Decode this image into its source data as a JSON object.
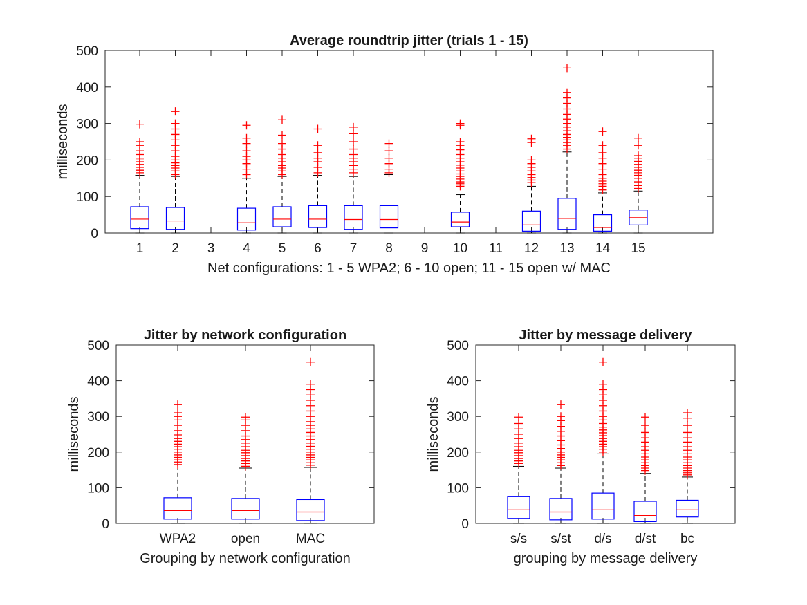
{
  "chart_data": [
    {
      "type": "box",
      "title": "Average roundtrip jitter (trials 1 - 15)",
      "xlabel": "Net configurations: 1 - 5 WPA2; 6 - 10 open; 11 - 15 open w/ MAC",
      "ylabel": "milliseconds",
      "ylim": [
        0,
        500
      ],
      "yticks": [
        0,
        100,
        200,
        300,
        400,
        500
      ],
      "categories": [
        "1",
        "2",
        "3",
        "4",
        "5",
        "6",
        "7",
        "8",
        "9",
        "10",
        "11",
        "12",
        "13",
        "14",
        "15"
      ],
      "boxes": [
        {
          "category": "1",
          "q1": 12,
          "median": 38,
          "q3": 72,
          "whisker_low": 0,
          "whisker_high": 158,
          "outliers": [
            165,
            172,
            180,
            188,
            195,
            200,
            205,
            215,
            225,
            240,
            250,
            298
          ]
        },
        {
          "category": "2",
          "q1": 10,
          "median": 33,
          "q3": 70,
          "whisker_low": 0,
          "whisker_high": 155,
          "outliers": [
            160,
            170,
            178,
            185,
            192,
            200,
            210,
            225,
            240,
            255,
            270,
            285,
            300,
            333
          ]
        },
        {
          "category": "3",
          "empty": true
        },
        {
          "category": "4",
          "q1": 8,
          "median": 28,
          "q3": 68,
          "whisker_low": 0,
          "whisker_high": 150,
          "outliers": [
            160,
            175,
            190,
            200,
            210,
            225,
            245,
            260,
            295
          ]
        },
        {
          "category": "5",
          "q1": 17,
          "median": 38,
          "q3": 72,
          "whisker_low": 0,
          "whisker_high": 155,
          "outliers": [
            160,
            170,
            178,
            185,
            195,
            205,
            215,
            230,
            245,
            268,
            310
          ]
        },
        {
          "category": "6",
          "q1": 15,
          "median": 38,
          "q3": 75,
          "whisker_low": 0,
          "whisker_high": 158,
          "outliers": [
            165,
            180,
            195,
            205,
            220,
            240,
            285
          ]
        },
        {
          "category": "7",
          "q1": 10,
          "median": 37,
          "q3": 75,
          "whisker_low": 0,
          "whisker_high": 155,
          "outliers": [
            165,
            175,
            185,
            195,
            205,
            215,
            230,
            250,
            272,
            290
          ]
        },
        {
          "category": "8",
          "q1": 14,
          "median": 37,
          "q3": 75,
          "whisker_low": 0,
          "whisker_high": 160,
          "outliers": [
            165,
            175,
            190,
            205,
            225,
            245
          ]
        },
        {
          "category": "9",
          "empty": true
        },
        {
          "category": "10",
          "q1": 17,
          "median": 30,
          "q3": 57,
          "whisker_low": 0,
          "whisker_high": 105,
          "outliers": [
            128,
            135,
            140,
            148,
            155,
            162,
            170,
            178,
            186,
            195,
            205,
            215,
            228,
            240,
            250,
            295,
            300
          ]
        },
        {
          "category": "11",
          "empty": true
        },
        {
          "category": "12",
          "q1": 5,
          "median": 22,
          "q3": 60,
          "whisker_low": 0,
          "whisker_high": 128,
          "outliers": [
            138,
            145,
            152,
            160,
            170,
            180,
            190,
            200,
            248,
            258
          ]
        },
        {
          "category": "13",
          "q1": 10,
          "median": 40,
          "q3": 95,
          "whisker_low": 0,
          "whisker_high": 222,
          "outliers": [
            230,
            240,
            248,
            255,
            262,
            270,
            280,
            290,
            300,
            312,
            325,
            340,
            355,
            370,
            385,
            452
          ]
        },
        {
          "category": "14",
          "q1": 5,
          "median": 15,
          "q3": 50,
          "whisker_low": 0,
          "whisker_high": 110,
          "outliers": [
            118,
            128,
            135,
            142,
            150,
            160,
            175,
            190,
            205,
            220,
            240,
            278
          ]
        },
        {
          "category": "15",
          "q1": 22,
          "median": 42,
          "q3": 63,
          "whisker_low": 0,
          "whisker_high": 115,
          "outliers": [
            122,
            130,
            140,
            150,
            158,
            165,
            172,
            180,
            188,
            196,
            205,
            212,
            240,
            260
          ]
        }
      ]
    },
    {
      "type": "box",
      "title": "Jitter by network configuration",
      "xlabel": "Grouping by network configuration",
      "ylabel": "milliseconds",
      "ylim": [
        0,
        500
      ],
      "yticks": [
        0,
        100,
        200,
        300,
        400,
        500
      ],
      "categories": [
        "WPA2",
        "open",
        "MAC"
      ],
      "boxes": [
        {
          "category": "WPA2",
          "q1": 12,
          "median": 36,
          "q3": 72,
          "whisker_low": 0,
          "whisker_high": 158,
          "outliers": [
            165,
            172,
            178,
            185,
            192,
            200,
            208,
            215,
            222,
            230,
            238,
            248,
            260,
            275,
            290,
            300,
            310,
            333
          ]
        },
        {
          "category": "open",
          "q1": 12,
          "median": 36,
          "q3": 70,
          "whisker_low": 0,
          "whisker_high": 155,
          "outliers": [
            160,
            168,
            175,
            182,
            190,
            198,
            205,
            215,
            225,
            235,
            245,
            260,
            275,
            290,
            298
          ]
        },
        {
          "category": "MAC",
          "q1": 8,
          "median": 32,
          "q3": 67,
          "whisker_low": 0,
          "whisker_high": 157,
          "outliers": [
            163,
            170,
            178,
            185,
            192,
            200,
            208,
            216,
            225,
            235,
            245,
            255,
            265,
            275,
            285,
            300,
            315,
            330,
            345,
            360,
            375,
            390,
            452
          ]
        }
      ]
    },
    {
      "type": "box",
      "title": "Jitter by message delivery",
      "xlabel": "grouping by message delivery",
      "ylabel": "milliseconds",
      "ylim": [
        0,
        500
      ],
      "yticks": [
        0,
        100,
        200,
        300,
        400,
        500
      ],
      "categories": [
        "s/s",
        "s/st",
        "d/s",
        "d/st",
        "bc"
      ],
      "boxes": [
        {
          "category": "s/s",
          "q1": 14,
          "median": 38,
          "q3": 75,
          "whisker_low": 0,
          "whisker_high": 160,
          "outliers": [
            168,
            175,
            182,
            190,
            198,
            205,
            215,
            225,
            238,
            250,
            265,
            280,
            298
          ]
        },
        {
          "category": "s/st",
          "q1": 10,
          "median": 32,
          "q3": 70,
          "whisker_low": 0,
          "whisker_high": 155,
          "outliers": [
            162,
            170,
            178,
            185,
            192,
            200,
            210,
            220,
            232,
            245,
            258,
            272,
            288,
            300,
            333
          ]
        },
        {
          "category": "d/s",
          "q1": 12,
          "median": 38,
          "q3": 85,
          "whisker_low": 0,
          "whisker_high": 195,
          "outliers": [
            200,
            208,
            215,
            222,
            230,
            238,
            246,
            254,
            262,
            270,
            280,
            290,
            300,
            315,
            330,
            345,
            360,
            375,
            390,
            452
          ]
        },
        {
          "category": "d/st",
          "q1": 5,
          "median": 22,
          "q3": 62,
          "whisker_low": 0,
          "whisker_high": 140,
          "outliers": [
            148,
            155,
            162,
            170,
            178,
            186,
            195,
            205,
            215,
            228,
            240,
            255,
            275,
            298
          ]
        },
        {
          "category": "bc",
          "q1": 18,
          "median": 38,
          "q3": 65,
          "whisker_low": 0,
          "whisker_high": 130,
          "outliers": [
            136,
            142,
            148,
            155,
            162,
            170,
            178,
            186,
            195,
            205,
            215,
            228,
            240,
            255,
            275,
            295,
            310
          ]
        }
      ]
    }
  ]
}
